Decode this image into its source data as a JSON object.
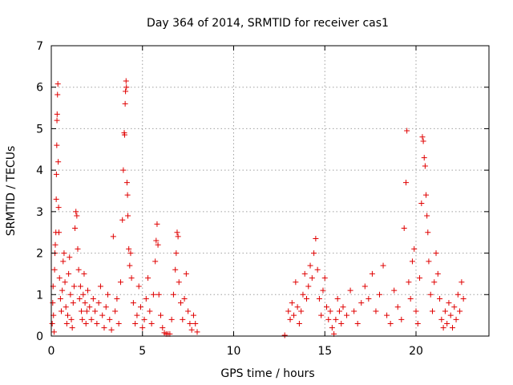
{
  "chart_data": {
    "type": "scatter",
    "title": "Day 364 of 2014, SRMTID for receiver cas1",
    "xlabel": "GPS time / hours",
    "ylabel": "SRMTID / TECUs",
    "xlim": [
      0,
      24
    ],
    "ylim": [
      0,
      7
    ],
    "xticks": [
      0,
      5,
      10,
      15,
      20
    ],
    "yticks": [
      0,
      1,
      2,
      3,
      4,
      5,
      6,
      7
    ],
    "grid": true,
    "marker": "plus",
    "color": "#e00000",
    "series": [
      {
        "name": "SRMTID",
        "points": [
          [
            0.05,
            0.3
          ],
          [
            0.08,
            0.8
          ],
          [
            0.1,
            1.2
          ],
          [
            0.12,
            0.5
          ],
          [
            0.15,
            0.1
          ],
          [
            0.18,
            1.6
          ],
          [
            0.2,
            2.0
          ],
          [
            0.22,
            2.2
          ],
          [
            0.25,
            2.5
          ],
          [
            0.27,
            3.3
          ],
          [
            0.28,
            3.9
          ],
          [
            0.3,
            4.6
          ],
          [
            0.31,
            5.2
          ],
          [
            0.32,
            5.35
          ],
          [
            0.34,
            5.82
          ],
          [
            0.36,
            6.08
          ],
          [
            0.38,
            4.2
          ],
          [
            0.4,
            3.1
          ],
          [
            0.42,
            2.5
          ],
          [
            0.45,
            1.4
          ],
          [
            0.5,
            0.9
          ],
          [
            0.55,
            0.6
          ],
          [
            0.6,
            1.1
          ],
          [
            0.65,
            1.8
          ],
          [
            0.7,
            2.0
          ],
          [
            0.75,
            1.3
          ],
          [
            0.8,
            0.7
          ],
          [
            0.85,
            0.3
          ],
          [
            0.9,
            0.5
          ],
          [
            0.95,
            1.5
          ],
          [
            1.0,
            1.9
          ],
          [
            1.05,
            1.0
          ],
          [
            1.1,
            0.4
          ],
          [
            1.15,
            0.2
          ],
          [
            1.2,
            0.8
          ],
          [
            1.25,
            1.2
          ],
          [
            1.3,
            2.6
          ],
          [
            1.35,
            3.0
          ],
          [
            1.4,
            2.9
          ],
          [
            1.45,
            2.1
          ],
          [
            1.5,
            1.6
          ],
          [
            1.55,
            0.9
          ],
          [
            1.6,
            1.2
          ],
          [
            1.65,
            0.6
          ],
          [
            1.7,
            0.4
          ],
          [
            1.75,
            1.0
          ],
          [
            1.8,
            1.5
          ],
          [
            1.85,
            0.8
          ],
          [
            1.9,
            0.3
          ],
          [
            1.95,
            0.6
          ],
          [
            2.0,
            1.1
          ],
          [
            2.1,
            0.7
          ],
          [
            2.2,
            0.4
          ],
          [
            2.3,
            0.9
          ],
          [
            2.4,
            0.6
          ],
          [
            2.5,
            0.3
          ],
          [
            2.6,
            0.8
          ],
          [
            2.7,
            1.2
          ],
          [
            2.8,
            0.5
          ],
          [
            2.9,
            0.2
          ],
          [
            3.0,
            0.7
          ],
          [
            3.1,
            1.0
          ],
          [
            3.2,
            0.4
          ],
          [
            3.3,
            0.15
          ],
          [
            3.4,
            2.4
          ],
          [
            3.5,
            0.6
          ],
          [
            3.6,
            0.9
          ],
          [
            3.7,
            0.3
          ],
          [
            3.8,
            1.3
          ],
          [
            3.9,
            2.8
          ],
          [
            3.95,
            4.0
          ],
          [
            4.0,
            4.9
          ],
          [
            4.02,
            4.85
          ],
          [
            4.05,
            5.6
          ],
          [
            4.07,
            5.9
          ],
          [
            4.1,
            6.15
          ],
          [
            4.12,
            6.0
          ],
          [
            4.15,
            3.7
          ],
          [
            4.18,
            3.4
          ],
          [
            4.2,
            2.9
          ],
          [
            4.25,
            2.1
          ],
          [
            4.3,
            1.7
          ],
          [
            4.35,
            2.0
          ],
          [
            4.4,
            1.4
          ],
          [
            4.5,
            0.8
          ],
          [
            4.6,
            0.3
          ],
          [
            4.7,
            0.5
          ],
          [
            4.8,
            1.2
          ],
          [
            4.9,
            0.7
          ],
          [
            5.0,
            0.2
          ],
          [
            5.1,
            0.4
          ],
          [
            5.2,
            0.9
          ],
          [
            5.3,
            1.4
          ],
          [
            5.4,
            0.6
          ],
          [
            5.5,
            0.3
          ],
          [
            5.6,
            1.0
          ],
          [
            5.7,
            1.8
          ],
          [
            5.75,
            2.3
          ],
          [
            5.8,
            2.7
          ],
          [
            5.85,
            2.2
          ],
          [
            5.9,
            1.0
          ],
          [
            6.0,
            0.5
          ],
          [
            6.1,
            0.2
          ],
          [
            6.2,
            0.08
          ],
          [
            6.3,
            0.05
          ],
          [
            6.4,
            0.05
          ],
          [
            6.5,
            0.05
          ],
          [
            6.6,
            0.4
          ],
          [
            6.7,
            1.0
          ],
          [
            6.8,
            1.6
          ],
          [
            6.85,
            2.0
          ],
          [
            6.9,
            2.5
          ],
          [
            6.95,
            2.4
          ],
          [
            7.0,
            1.3
          ],
          [
            7.1,
            0.8
          ],
          [
            7.2,
            0.4
          ],
          [
            7.3,
            0.9
          ],
          [
            7.4,
            1.5
          ],
          [
            7.5,
            0.6
          ],
          [
            7.6,
            0.3
          ],
          [
            7.7,
            0.15
          ],
          [
            7.8,
            0.5
          ],
          [
            7.9,
            0.3
          ],
          [
            8.0,
            0.1
          ],
          [
            12.8,
            0.02
          ],
          [
            13.0,
            0.6
          ],
          [
            13.1,
            0.4
          ],
          [
            13.2,
            0.8
          ],
          [
            13.3,
            0.5
          ],
          [
            13.4,
            1.3
          ],
          [
            13.5,
            0.7
          ],
          [
            13.6,
            0.3
          ],
          [
            13.7,
            0.6
          ],
          [
            13.8,
            1.0
          ],
          [
            13.9,
            1.5
          ],
          [
            14.0,
            0.9
          ],
          [
            14.1,
            1.2
          ],
          [
            14.2,
            1.7
          ],
          [
            14.3,
            1.4
          ],
          [
            14.4,
            2.0
          ],
          [
            14.5,
            2.35
          ],
          [
            14.6,
            1.6
          ],
          [
            14.7,
            0.9
          ],
          [
            14.8,
            0.5
          ],
          [
            14.9,
            1.1
          ],
          [
            15.0,
            1.4
          ],
          [
            15.1,
            0.7
          ],
          [
            15.2,
            0.4
          ],
          [
            15.3,
            0.6
          ],
          [
            15.4,
            0.2
          ],
          [
            15.5,
            0.05
          ],
          [
            15.6,
            0.4
          ],
          [
            15.7,
            0.9
          ],
          [
            15.8,
            0.6
          ],
          [
            15.9,
            0.3
          ],
          [
            16.0,
            0.7
          ],
          [
            16.2,
            0.5
          ],
          [
            16.4,
            1.1
          ],
          [
            16.6,
            0.6
          ],
          [
            16.8,
            0.3
          ],
          [
            17.0,
            0.8
          ],
          [
            17.2,
            1.2
          ],
          [
            17.4,
            0.9
          ],
          [
            17.6,
            1.5
          ],
          [
            17.8,
            0.6
          ],
          [
            18.0,
            1.0
          ],
          [
            18.2,
            1.7
          ],
          [
            18.4,
            0.5
          ],
          [
            18.6,
            0.3
          ],
          [
            18.8,
            1.1
          ],
          [
            19.0,
            0.7
          ],
          [
            19.2,
            0.4
          ],
          [
            19.35,
            2.6
          ],
          [
            19.45,
            3.7
          ],
          [
            19.5,
            4.95
          ],
          [
            19.6,
            1.3
          ],
          [
            19.7,
            0.9
          ],
          [
            19.8,
            1.8
          ],
          [
            19.9,
            2.1
          ],
          [
            20.0,
            0.6
          ],
          [
            20.1,
            0.3
          ],
          [
            20.2,
            1.4
          ],
          [
            20.3,
            3.2
          ],
          [
            20.35,
            4.8
          ],
          [
            20.4,
            4.7
          ],
          [
            20.45,
            4.3
          ],
          [
            20.5,
            4.1
          ],
          [
            20.55,
            3.4
          ],
          [
            20.6,
            2.9
          ],
          [
            20.65,
            2.5
          ],
          [
            20.7,
            1.8
          ],
          [
            20.8,
            1.0
          ],
          [
            20.9,
            0.6
          ],
          [
            21.0,
            1.3
          ],
          [
            21.1,
            2.0
          ],
          [
            21.2,
            1.5
          ],
          [
            21.3,
            0.9
          ],
          [
            21.4,
            0.4
          ],
          [
            21.5,
            0.2
          ],
          [
            21.6,
            0.6
          ],
          [
            21.7,
            0.3
          ],
          [
            21.8,
            0.8
          ],
          [
            21.9,
            0.5
          ],
          [
            22.0,
            0.2
          ],
          [
            22.1,
            0.7
          ],
          [
            22.2,
            0.4
          ],
          [
            22.3,
            1.0
          ],
          [
            22.4,
            0.6
          ],
          [
            22.5,
            1.3
          ],
          [
            22.6,
            0.9
          ]
        ]
      }
    ]
  }
}
